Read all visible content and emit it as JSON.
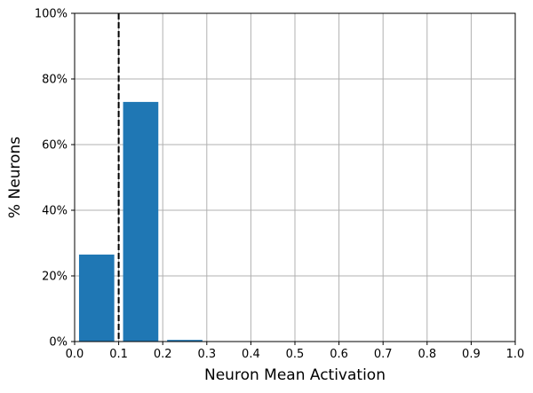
{
  "chart_data": {
    "type": "bar",
    "title": "",
    "xlabel": "Neuron Mean Activation",
    "ylabel": "% Neurons",
    "xlim": [
      0,
      1.0
    ],
    "ylim": [
      0,
      1.0
    ],
    "grid": true,
    "bars": [
      {
        "x_start": 0.0,
        "x_end": 0.1,
        "value": 0.265
      },
      {
        "x_start": 0.1,
        "x_end": 0.2,
        "value": 0.73
      },
      {
        "x_start": 0.2,
        "x_end": 0.3,
        "value": 0.005
      }
    ],
    "bar_color": "#1f77b4",
    "reference_line": {
      "x": 0.1,
      "style": "dashed",
      "color": "#000000"
    },
    "x_ticks": [
      {
        "value": 0.0,
        "label": "0.0"
      },
      {
        "value": 0.1,
        "label": "0.1"
      },
      {
        "value": 0.2,
        "label": "0.2"
      },
      {
        "value": 0.3,
        "label": "0.3"
      },
      {
        "value": 0.4,
        "label": "0.4"
      },
      {
        "value": 0.5,
        "label": "0.5"
      },
      {
        "value": 0.6,
        "label": "0.6"
      },
      {
        "value": 0.7,
        "label": "0.7"
      },
      {
        "value": 0.8,
        "label": "0.8"
      },
      {
        "value": 0.9,
        "label": "0.9"
      },
      {
        "value": 1.0,
        "label": "1.0"
      }
    ],
    "y_ticks": [
      {
        "value": 0.0,
        "label": "0%"
      },
      {
        "value": 0.2,
        "label": "20%"
      },
      {
        "value": 0.4,
        "label": "40%"
      },
      {
        "value": 0.6,
        "label": "60%"
      },
      {
        "value": 0.8,
        "label": "80%"
      },
      {
        "value": 1.0,
        "label": "100%"
      }
    ]
  }
}
